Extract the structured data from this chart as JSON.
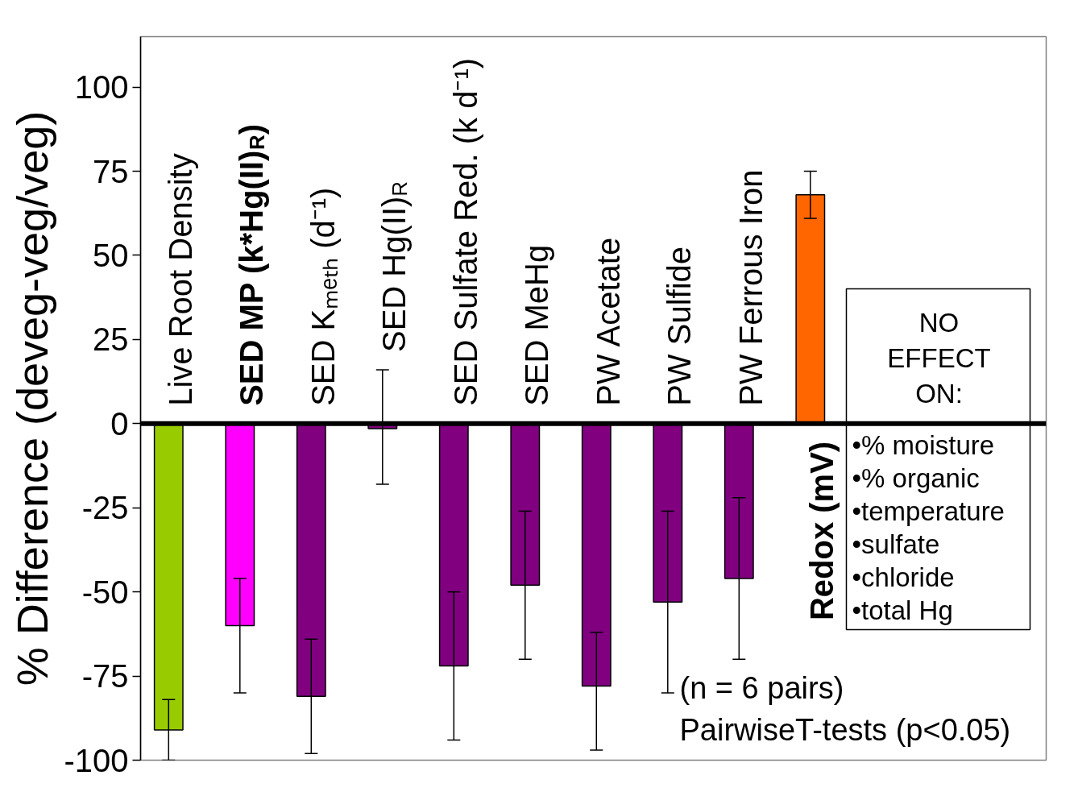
{
  "chart_data": {
    "type": "bar",
    "ylabel": "% Difference (deveg-veg/veg)",
    "categories": [
      "Live Root Density",
      "SED MP (k*Hg(II)$_{R}$)",
      "SED Kₘₑₜₕ (d⁻¹)",
      "SED Hg(II)$_{R}$",
      "SED Sulfate Red. (k d⁻¹)",
      "SED MeHg",
      "PW Acetate",
      "PW Sulfide",
      "PW Ferrous Iron",
      "Redox (mV)"
    ],
    "values": [
      -91,
      -60,
      -81,
      -1.5,
      -72,
      -48,
      -78,
      -53,
      -46,
      68
    ],
    "colors": [
      "#99cc00",
      "#ff00ff",
      "#800080",
      "#800080",
      "#800080",
      "#800080",
      "#800080",
      "#800080",
      "#800080",
      "#ff6600"
    ],
    "errors": [
      9,
      [
        -80,
        -46
      ],
      17,
      [
        -18,
        16
      ],
      22,
      22,
      [
        -97,
        -62
      ],
      27,
      24,
      7
    ],
    "ylim": [
      -100,
      115
    ],
    "yticks": [
      -100,
      -75,
      -50,
      -25,
      0,
      25,
      50,
      75,
      100
    ],
    "annotations": [
      "NO EFFECT ON:",
      "•% moisture",
      "•% organic",
      "•temperature",
      "•sulfate",
      "•chloride",
      "•total Hg",
      "(n = 6 pairs)",
      "PairwiseT-tests (p<0.05)"
    ]
  }
}
